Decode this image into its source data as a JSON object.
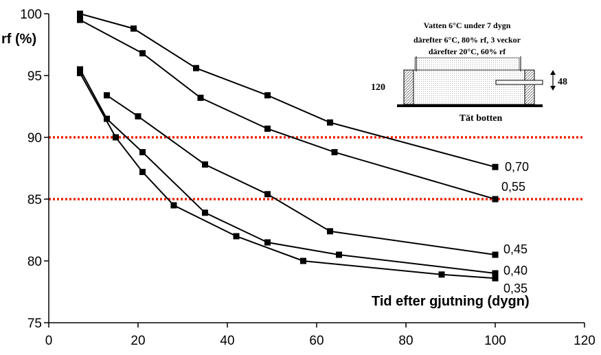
{
  "chart_data": {
    "type": "line",
    "title": "",
    "xlabel": "Tid efter gjutning (dygn)",
    "ylabel": "rf (%)",
    "xlim": [
      0,
      120
    ],
    "ylim": [
      75,
      100
    ],
    "xticks": [
      0,
      20,
      40,
      60,
      80,
      100,
      120
    ],
    "yticks": [
      75,
      80,
      85,
      90,
      95,
      100
    ],
    "grid": false,
    "legend": "none",
    "reference_lines": [
      {
        "y": 90,
        "color": "#ee2200",
        "style": "dotted"
      },
      {
        "y": 85,
        "color": "#ee2200",
        "style": "dotted"
      }
    ],
    "series": [
      {
        "name": "0,70",
        "x": [
          7,
          19,
          33,
          49,
          63,
          100
        ],
        "y": [
          100,
          98.8,
          95.6,
          93.4,
          91.2,
          87.6
        ]
      },
      {
        "name": "0,55",
        "x": [
          7,
          21,
          34,
          49,
          64,
          100
        ],
        "y": [
          99.5,
          96.8,
          93.2,
          90.7,
          88.8,
          85
        ]
      },
      {
        "name": "0,45",
        "x": [
          13,
          20,
          35,
          49,
          63,
          100
        ],
        "y": [
          93.4,
          91.7,
          87.8,
          85.4,
          82.4,
          80.5
        ]
      },
      {
        "name": "0,40",
        "x": [
          7,
          13,
          21,
          35,
          49,
          65,
          100
        ],
        "y": [
          95.5,
          91.5,
          88.8,
          83.9,
          81.5,
          80.5,
          79
        ]
      },
      {
        "name": "0,35",
        "x": [
          7,
          15,
          21,
          28,
          42,
          57,
          88,
          100
        ],
        "y": [
          95.2,
          90,
          87.2,
          84.5,
          82,
          80,
          78.9,
          78.6
        ]
      }
    ],
    "inset": {
      "caption_lines": [
        "Vatten 6°C under 7 dygn",
        "därefter 6°C, 80% rf, 3 veckor",
        "därefter 20°C, 60% rf"
      ],
      "height_label": "120",
      "depth_label": "48",
      "bottom_label": "Tät botten"
    }
  }
}
